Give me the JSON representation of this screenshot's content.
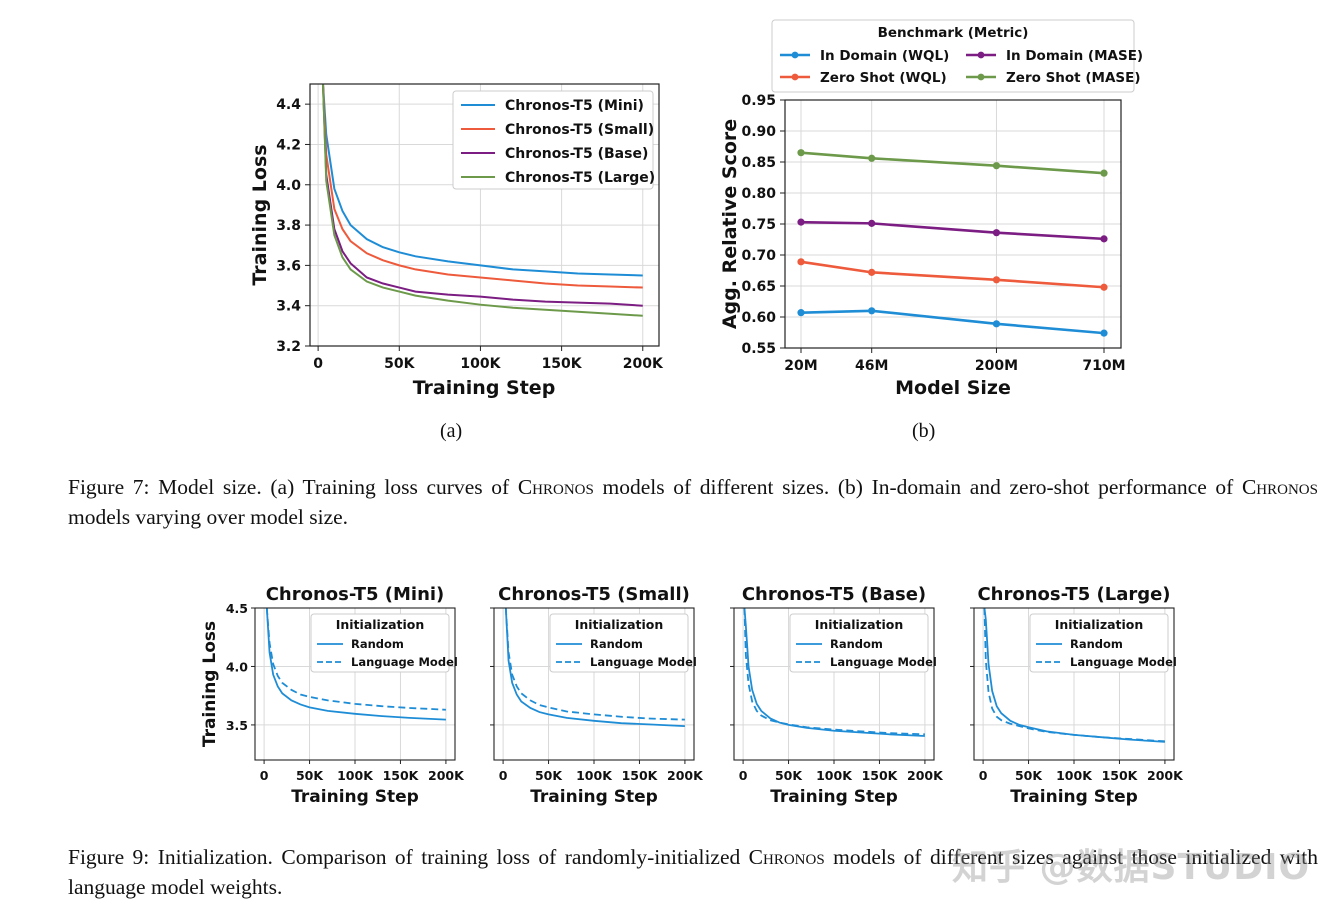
{
  "figure7": {
    "sub_a_label": "(a)",
    "sub_b_label": "(b)",
    "caption_prefix": "Figure 7: Model size. (a) Training loss curves of ",
    "caption_sc1": "Chronos",
    "caption_mid": " models of different sizes. (b) In-domain and zero-shot performance of ",
    "caption_sc2": "Chronos",
    "caption_suffix": " models varying over model size."
  },
  "figure9": {
    "caption_prefix": "Figure 9: Initialization. Comparison of training loss of randomly-initialized ",
    "caption_sc": "Chronos",
    "caption_suffix": " models of different sizes against those initialized with language model weights."
  },
  "watermark": "知乎 @数据STUDIO",
  "chart_data": [
    {
      "id": "fig7a",
      "type": "line",
      "xlabel": "Training Step",
      "ylabel": "Training Loss",
      "xlim": [
        -5000,
        210000
      ],
      "ylim": [
        3.2,
        4.5
      ],
      "xticks": [
        0,
        50000,
        100000,
        150000,
        200000
      ],
      "xtick_labels": [
        "0",
        "50K",
        "100K",
        "150K",
        "200K"
      ],
      "yticks": [
        3.2,
        3.4,
        3.6,
        3.8,
        4.0,
        4.2,
        4.4
      ],
      "ytick_labels": [
        "3.2",
        "3.4",
        "3.6",
        "3.8",
        "4.0",
        "4.2",
        "4.4"
      ],
      "grid": true,
      "legend": "top-right",
      "series": [
        {
          "name": "Chronos-T5 (Mini)",
          "color": "#1f8dd6",
          "x": [
            3000,
            5000,
            10000,
            15000,
            20000,
            30000,
            40000,
            50000,
            60000,
            80000,
            100000,
            120000,
            140000,
            160000,
            180000,
            200000
          ],
          "y": [
            4.5,
            4.25,
            3.98,
            3.87,
            3.8,
            3.73,
            3.69,
            3.665,
            3.645,
            3.62,
            3.6,
            3.58,
            3.57,
            3.56,
            3.555,
            3.55
          ]
        },
        {
          "name": "Chronos-T5 (Small)",
          "color": "#ee5a3c",
          "x": [
            3000,
            5000,
            10000,
            15000,
            20000,
            30000,
            40000,
            50000,
            60000,
            80000,
            100000,
            120000,
            140000,
            160000,
            180000,
            200000
          ],
          "y": [
            4.5,
            4.15,
            3.88,
            3.78,
            3.72,
            3.66,
            3.625,
            3.6,
            3.58,
            3.555,
            3.54,
            3.525,
            3.51,
            3.5,
            3.495,
            3.49
          ]
        },
        {
          "name": "Chronos-T5 (Base)",
          "color": "#7b1d82",
          "x": [
            3000,
            5000,
            10000,
            15000,
            20000,
            30000,
            40000,
            50000,
            60000,
            80000,
            100000,
            120000,
            140000,
            160000,
            180000,
            200000
          ],
          "y": [
            4.5,
            4.05,
            3.78,
            3.67,
            3.61,
            3.54,
            3.51,
            3.49,
            3.47,
            3.455,
            3.445,
            3.43,
            3.42,
            3.415,
            3.41,
            3.4
          ]
        },
        {
          "name": "Chronos-T5 (Large)",
          "color": "#6c9a4a",
          "x": [
            3000,
            5000,
            10000,
            15000,
            20000,
            30000,
            40000,
            50000,
            60000,
            80000,
            100000,
            120000,
            140000,
            160000,
            180000,
            200000
          ],
          "y": [
            4.5,
            4.02,
            3.75,
            3.64,
            3.58,
            3.52,
            3.49,
            3.47,
            3.45,
            3.425,
            3.405,
            3.39,
            3.38,
            3.37,
            3.36,
            3.35
          ]
        }
      ]
    },
    {
      "id": "fig7b",
      "type": "line",
      "xlabel": "Model Size",
      "ylabel": "Agg. Relative Score",
      "categories": [
        "20M",
        "46M",
        "200M",
        "710M"
      ],
      "x_log_values": [
        20,
        46,
        200,
        710
      ],
      "ylim": [
        0.55,
        0.95
      ],
      "yticks": [
        0.55,
        0.6,
        0.65,
        0.7,
        0.75,
        0.8,
        0.85,
        0.9,
        0.95
      ],
      "ytick_labels": [
        "0.55",
        "0.60",
        "0.65",
        "0.70",
        "0.75",
        "0.80",
        "0.85",
        "0.90",
        "0.95"
      ],
      "grid": true,
      "legend": "top (outside)",
      "legend_title": "Benchmark (Metric)",
      "series": [
        {
          "name": "In Domain (WQL)",
          "color": "#1f8dd6",
          "values": [
            0.607,
            0.61,
            0.589,
            0.574
          ]
        },
        {
          "name": "In Domain (MASE)",
          "color": "#7b1d82",
          "values": [
            0.753,
            0.751,
            0.736,
            0.726
          ]
        },
        {
          "name": "Zero Shot (WQL)",
          "color": "#ee5a3c",
          "values": [
            0.689,
            0.672,
            0.66,
            0.648
          ]
        },
        {
          "name": "Zero Shot (MASE)",
          "color": "#6c9a4a",
          "values": [
            0.865,
            0.856,
            0.844,
            0.832
          ]
        }
      ]
    },
    {
      "id": "fig9",
      "type": "line",
      "panels": [
        {
          "title": "Chronos-T5 (Mini)",
          "x": [
            3000,
            6000,
            10000,
            15000,
            20000,
            30000,
            40000,
            50000,
            70000,
            100000,
            130000,
            160000,
            200000
          ],
          "random": [
            4.5,
            4.12,
            3.93,
            3.83,
            3.77,
            3.71,
            3.675,
            3.65,
            3.62,
            3.595,
            3.575,
            3.56,
            3.545
          ],
          "lm": [
            4.5,
            4.2,
            4.02,
            3.92,
            3.86,
            3.8,
            3.76,
            3.74,
            3.71,
            3.68,
            3.66,
            3.645,
            3.63
          ]
        },
        {
          "title": "Chronos-T5 (Small)",
          "x": [
            3000,
            6000,
            10000,
            15000,
            20000,
            30000,
            40000,
            50000,
            70000,
            100000,
            130000,
            160000,
            200000
          ],
          "random": [
            4.5,
            4.05,
            3.86,
            3.76,
            3.7,
            3.645,
            3.61,
            3.59,
            3.56,
            3.535,
            3.515,
            3.505,
            3.49
          ],
          "lm": [
            4.5,
            4.12,
            3.93,
            3.83,
            3.77,
            3.71,
            3.67,
            3.65,
            3.615,
            3.59,
            3.57,
            3.555,
            3.545
          ]
        },
        {
          "title": "Chronos-T5 (Base)",
          "x": [
            1500,
            3000,
            6000,
            10000,
            15000,
            20000,
            30000,
            40000,
            50000,
            70000,
            100000,
            130000,
            160000,
            200000
          ],
          "random": [
            4.5,
            4.35,
            4.0,
            3.8,
            3.68,
            3.62,
            3.555,
            3.52,
            3.5,
            3.475,
            3.45,
            3.435,
            3.42,
            3.405
          ],
          "lm": [
            4.5,
            4.1,
            3.85,
            3.7,
            3.62,
            3.58,
            3.54,
            3.52,
            3.505,
            3.48,
            3.46,
            3.445,
            3.43,
            3.42
          ]
        },
        {
          "title": "Chronos-T5 (Large)",
          "x": [
            1500,
            3000,
            6000,
            10000,
            15000,
            20000,
            30000,
            40000,
            50000,
            70000,
            100000,
            130000,
            160000,
            200000
          ],
          "random": [
            4.5,
            4.4,
            4.02,
            3.79,
            3.66,
            3.6,
            3.535,
            3.5,
            3.48,
            3.445,
            3.415,
            3.395,
            3.375,
            3.355
          ],
          "lm": [
            4.5,
            4.05,
            3.78,
            3.64,
            3.57,
            3.54,
            3.51,
            3.49,
            3.47,
            3.44,
            3.415,
            3.395,
            3.38,
            3.36
          ]
        }
      ],
      "xlabel": "Training Step",
      "ylabel": "Training Loss",
      "xlim": [
        -10000,
        210000
      ],
      "ylim": [
        3.2,
        4.5
      ],
      "xticks": [
        0,
        50000,
        100000,
        150000,
        200000
      ],
      "xtick_labels": [
        "0",
        "50K",
        "100K",
        "150K",
        "200K"
      ],
      "yticks": [
        3.5,
        4.0,
        4.5
      ],
      "ytick_labels": [
        "3.5",
        "4.0",
        "4.5"
      ],
      "grid": true,
      "legend": "top-right",
      "legend_title": "Initialization",
      "legend_entries": [
        "Random",
        "Language Model"
      ],
      "color": "#1f8dd6"
    }
  ]
}
